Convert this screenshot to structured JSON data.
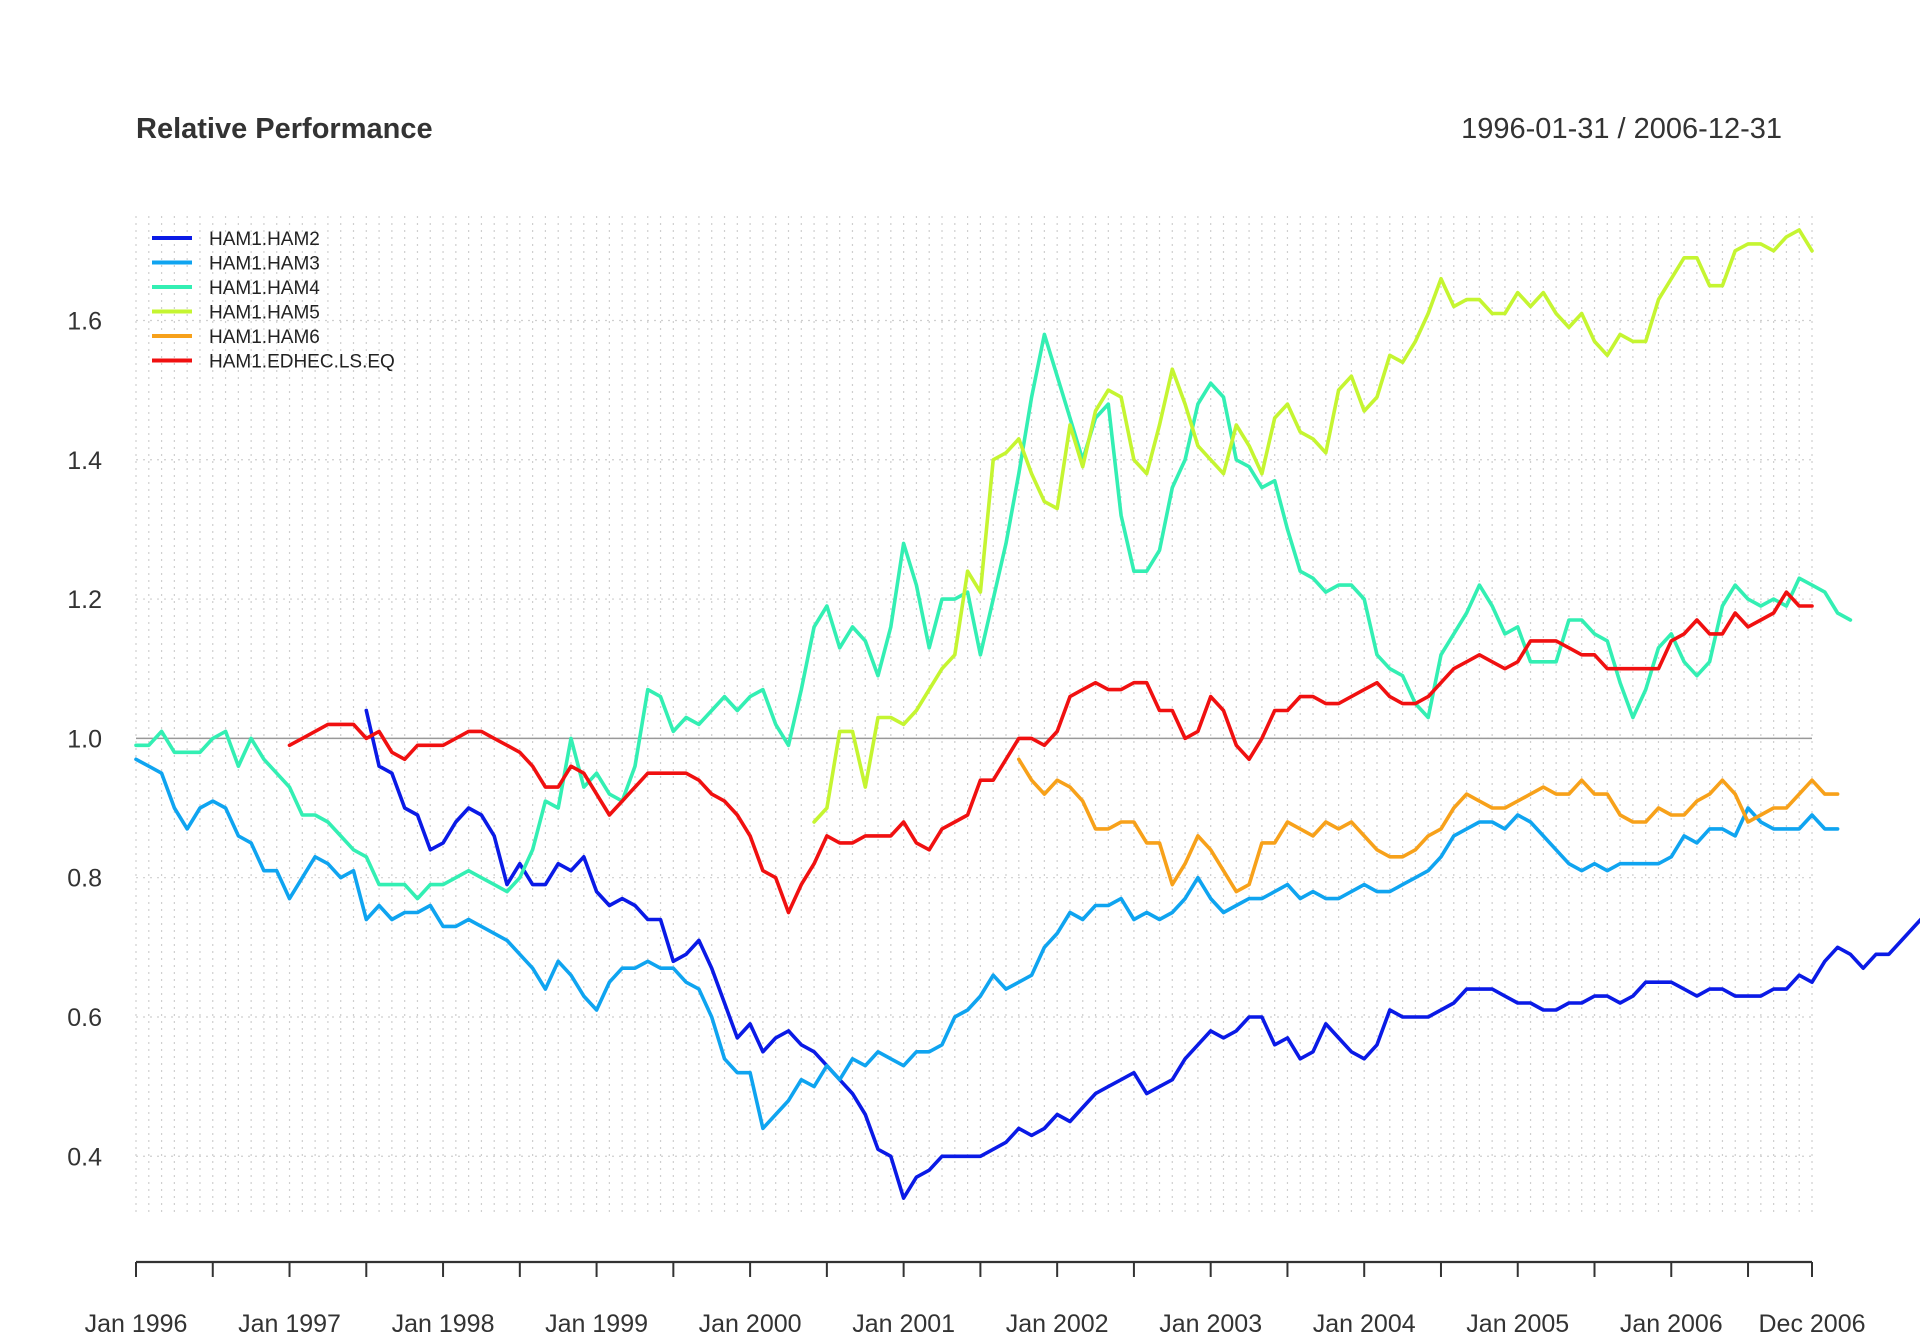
{
  "chart_data": {
    "type": "line",
    "title": "Relative Performance",
    "subtitle": "1996-01-31 / 2006-12-31",
    "xlabel": "",
    "ylabel": "",
    "x_start": "1996-01",
    "x_end": "2006-12",
    "x_frequency": "monthly",
    "x_tick_labels": [
      "Jan 1996",
      "Jan 1997",
      "Jan 1998",
      "Jan 1999",
      "Jan 2000",
      "Jan 2001",
      "Jan 2002",
      "Jan 2003",
      "Jan 2004",
      "Jan 2005",
      "Jan 2006",
      "Dec 2006"
    ],
    "y_tick_labels": [
      "0.4",
      "0.6",
      "0.8",
      "1.0",
      "1.2",
      "1.4",
      "1.6"
    ],
    "ylim": [
      0.32,
      1.75
    ],
    "reference_line": 1.0,
    "grid": true,
    "legend_position": "top-left",
    "series": [
      {
        "name": "HAM1.HAM2",
        "color": "#0a1ae6",
        "start": "1997-07",
        "values": [
          1.04,
          0.96,
          0.95,
          0.9,
          0.89,
          0.84,
          0.85,
          0.88,
          0.9,
          0.89,
          0.86,
          0.79,
          0.82,
          0.79,
          0.79,
          0.82,
          0.81,
          0.83,
          0.78,
          0.76,
          0.77,
          0.76,
          0.74,
          0.74,
          0.68,
          0.69,
          0.71,
          0.67,
          0.62,
          0.57,
          0.59,
          0.55,
          0.57,
          0.58,
          0.56,
          0.55,
          0.53,
          0.51,
          0.49,
          0.46,
          0.41,
          0.4,
          0.34,
          0.37,
          0.38,
          0.4,
          0.4,
          0.4,
          0.4,
          0.41,
          0.42,
          0.44,
          0.43,
          0.44,
          0.46,
          0.45,
          0.47,
          0.49,
          0.5,
          0.51,
          0.52,
          0.49,
          0.5,
          0.51,
          0.54,
          0.56,
          0.58,
          0.57,
          0.58,
          0.6,
          0.6,
          0.56,
          0.57,
          0.54,
          0.55,
          0.59,
          0.57,
          0.55,
          0.54,
          0.56,
          0.61,
          0.6,
          0.6,
          0.6,
          0.61,
          0.62,
          0.64,
          0.64,
          0.64,
          0.63,
          0.62,
          0.62,
          0.61,
          0.61,
          0.62,
          0.62,
          0.63,
          0.63,
          0.62,
          0.63,
          0.65,
          0.65,
          0.65,
          0.64,
          0.63,
          0.64,
          0.64,
          0.63,
          0.63,
          0.63,
          0.64,
          0.64,
          0.66,
          0.65,
          0.68,
          0.7,
          0.69,
          0.67,
          0.69,
          0.69,
          0.71,
          0.73,
          0.75,
          0.75,
          0.76
        ]
      },
      {
        "name": "HAM1.HAM3",
        "color": "#0fa4f0",
        "start": "1996-01",
        "values": [
          0.97,
          0.96,
          0.95,
          0.9,
          0.87,
          0.9,
          0.91,
          0.9,
          0.86,
          0.85,
          0.81,
          0.81,
          0.77,
          0.8,
          0.83,
          0.82,
          0.8,
          0.81,
          0.74,
          0.76,
          0.74,
          0.75,
          0.75,
          0.76,
          0.73,
          0.73,
          0.74,
          0.73,
          0.72,
          0.71,
          0.69,
          0.67,
          0.64,
          0.68,
          0.66,
          0.63,
          0.61,
          0.65,
          0.67,
          0.67,
          0.68,
          0.67,
          0.67,
          0.65,
          0.64,
          0.6,
          0.54,
          0.52,
          0.52,
          0.44,
          0.46,
          0.48,
          0.51,
          0.5,
          0.53,
          0.51,
          0.54,
          0.53,
          0.55,
          0.54,
          0.53,
          0.55,
          0.55,
          0.56,
          0.6,
          0.61,
          0.63,
          0.66,
          0.64,
          0.65,
          0.66,
          0.7,
          0.72,
          0.75,
          0.74,
          0.76,
          0.76,
          0.77,
          0.74,
          0.75,
          0.74,
          0.75,
          0.77,
          0.8,
          0.77,
          0.75,
          0.76,
          0.77,
          0.77,
          0.78,
          0.79,
          0.77,
          0.78,
          0.77,
          0.77,
          0.78,
          0.79,
          0.78,
          0.78,
          0.79,
          0.8,
          0.81,
          0.83,
          0.86,
          0.87,
          0.88,
          0.88,
          0.87,
          0.89,
          0.88,
          0.86,
          0.84,
          0.82,
          0.81,
          0.82,
          0.81,
          0.82,
          0.82,
          0.82,
          0.82,
          0.83,
          0.86,
          0.85,
          0.87,
          0.87,
          0.86,
          0.9,
          0.88,
          0.87,
          0.87,
          0.87,
          0.89,
          0.87,
          0.87
        ]
      },
      {
        "name": "HAM1.HAM4",
        "color": "#33efb3",
        "start": "1996-01",
        "values": [
          0.99,
          0.99,
          1.01,
          0.98,
          0.98,
          0.98,
          1.0,
          1.01,
          0.96,
          1.0,
          0.97,
          0.95,
          0.93,
          0.89,
          0.89,
          0.88,
          0.86,
          0.84,
          0.83,
          0.79,
          0.79,
          0.79,
          0.77,
          0.79,
          0.79,
          0.8,
          0.81,
          0.8,
          0.79,
          0.78,
          0.8,
          0.84,
          0.91,
          0.9,
          1.0,
          0.93,
          0.95,
          0.92,
          0.91,
          0.96,
          1.07,
          1.06,
          1.01,
          1.03,
          1.02,
          1.04,
          1.06,
          1.04,
          1.06,
          1.07,
          1.02,
          0.99,
          1.07,
          1.16,
          1.19,
          1.13,
          1.16,
          1.14,
          1.09,
          1.16,
          1.28,
          1.22,
          1.13,
          1.2,
          1.2,
          1.21,
          1.12,
          1.2,
          1.28,
          1.38,
          1.49,
          1.58,
          1.52,
          1.46,
          1.4,
          1.46,
          1.48,
          1.32,
          1.24,
          1.24,
          1.27,
          1.36,
          1.4,
          1.48,
          1.51,
          1.49,
          1.4,
          1.39,
          1.36,
          1.37,
          1.3,
          1.24,
          1.23,
          1.21,
          1.22,
          1.22,
          1.2,
          1.12,
          1.1,
          1.09,
          1.05,
          1.03,
          1.12,
          1.15,
          1.18,
          1.22,
          1.19,
          1.15,
          1.16,
          1.11,
          1.11,
          1.11,
          1.17,
          1.17,
          1.15,
          1.14,
          1.08,
          1.03,
          1.07,
          1.13,
          1.15,
          1.11,
          1.09,
          1.11,
          1.19,
          1.22,
          1.2,
          1.19,
          1.2,
          1.19,
          1.23,
          1.22,
          1.21,
          1.18,
          1.17
        ]
      },
      {
        "name": "HAM1.HAM5",
        "color": "#c5f531",
        "start": "2000-06",
        "values": [
          0.88,
          0.9,
          1.01,
          1.01,
          0.93,
          1.03,
          1.03,
          1.02,
          1.04,
          1.07,
          1.1,
          1.12,
          1.24,
          1.21,
          1.4,
          1.41,
          1.43,
          1.38,
          1.34,
          1.33,
          1.45,
          1.39,
          1.47,
          1.5,
          1.49,
          1.4,
          1.38,
          1.45,
          1.53,
          1.48,
          1.42,
          1.4,
          1.38,
          1.45,
          1.42,
          1.38,
          1.46,
          1.48,
          1.44,
          1.43,
          1.41,
          1.5,
          1.52,
          1.47,
          1.49,
          1.55,
          1.54,
          1.57,
          1.61,
          1.66,
          1.62,
          1.63,
          1.63,
          1.61,
          1.61,
          1.64,
          1.62,
          1.64,
          1.61,
          1.59,
          1.61,
          1.57,
          1.55,
          1.58,
          1.57,
          1.57,
          1.63,
          1.66,
          1.69,
          1.69,
          1.65,
          1.65,
          1.7,
          1.71,
          1.71,
          1.7,
          1.72,
          1.73,
          1.7
        ]
      },
      {
        "name": "HAM1.HAM6",
        "color": "#f7a11a",
        "start": "2001-10",
        "values": [
          0.97,
          0.94,
          0.92,
          0.94,
          0.93,
          0.91,
          0.87,
          0.87,
          0.88,
          0.88,
          0.85,
          0.85,
          0.79,
          0.82,
          0.86,
          0.84,
          0.81,
          0.78,
          0.79,
          0.85,
          0.85,
          0.88,
          0.87,
          0.86,
          0.88,
          0.87,
          0.88,
          0.86,
          0.84,
          0.83,
          0.83,
          0.84,
          0.86,
          0.87,
          0.9,
          0.92,
          0.91,
          0.9,
          0.9,
          0.91,
          0.92,
          0.93,
          0.92,
          0.92,
          0.94,
          0.92,
          0.92,
          0.89,
          0.88,
          0.88,
          0.9,
          0.89,
          0.89,
          0.91,
          0.92,
          0.94,
          0.92,
          0.88,
          0.89,
          0.9,
          0.9,
          0.92,
          0.94,
          0.92,
          0.92
        ]
      },
      {
        "name": "HAM1.EDHEC.LS.EQ",
        "color": "#f01010",
        "start": "1997-01",
        "values": [
          0.99,
          1.0,
          1.01,
          1.02,
          1.02,
          1.02,
          1.0,
          1.01,
          0.98,
          0.97,
          0.99,
          0.99,
          0.99,
          1.0,
          1.01,
          1.01,
          1.0,
          0.99,
          0.98,
          0.96,
          0.93,
          0.93,
          0.96,
          0.95,
          0.92,
          0.89,
          0.91,
          0.93,
          0.95,
          0.95,
          0.95,
          0.95,
          0.94,
          0.92,
          0.91,
          0.89,
          0.86,
          0.81,
          0.8,
          0.75,
          0.79,
          0.82,
          0.86,
          0.85,
          0.85,
          0.86,
          0.86,
          0.86,
          0.88,
          0.85,
          0.84,
          0.87,
          0.88,
          0.89,
          0.94,
          0.94,
          0.97,
          1.0,
          1.0,
          0.99,
          1.01,
          1.06,
          1.07,
          1.08,
          1.07,
          1.07,
          1.08,
          1.08,
          1.04,
          1.04,
          1.0,
          1.01,
          1.06,
          1.04,
          0.99,
          0.97,
          1.0,
          1.04,
          1.04,
          1.06,
          1.06,
          1.05,
          1.05,
          1.06,
          1.07,
          1.08,
          1.06,
          1.05,
          1.05,
          1.06,
          1.08,
          1.1,
          1.11,
          1.12,
          1.11,
          1.1,
          1.11,
          1.14,
          1.14,
          1.14,
          1.13,
          1.12,
          1.12,
          1.1,
          1.1,
          1.1,
          1.1,
          1.1,
          1.14,
          1.15,
          1.17,
          1.15,
          1.15,
          1.18,
          1.16,
          1.17,
          1.18,
          1.21,
          1.19,
          1.19
        ]
      }
    ]
  }
}
